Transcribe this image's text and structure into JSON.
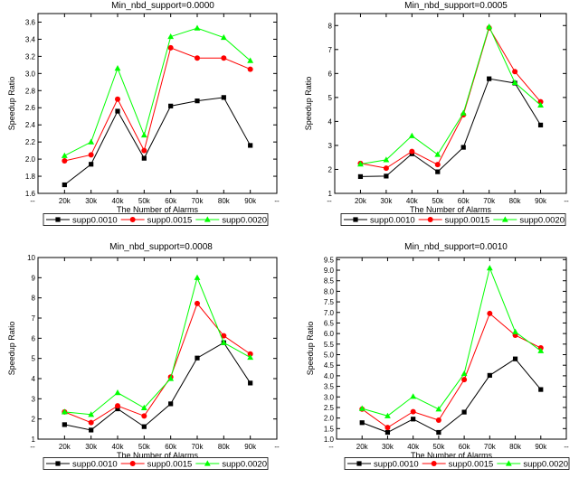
{
  "series_styles": [
    {
      "color": "#000000",
      "marker": "square"
    },
    {
      "color": "#ff0000",
      "marker": "circle"
    },
    {
      "color": "#00ff00",
      "marker": "triangle"
    }
  ],
  "chart_data": [
    {
      "type": "line",
      "title": "Min_nbd_support=0.0000",
      "xlabel": "The Number of Alarms",
      "ylabel": "Speedup Ratio",
      "categories": [
        "20k",
        "30k",
        "40k",
        "50k",
        "60k",
        "70k",
        "80k",
        "90k"
      ],
      "ylim": [
        1.6,
        3.7
      ],
      "yticks": [
        1.6,
        1.8,
        2.0,
        2.2,
        2.4,
        2.6,
        2.8,
        3.0,
        3.2,
        3.4,
        3.6
      ],
      "ytick_labels": [
        "1.6",
        "1.8",
        "2.0",
        "2.2",
        "2.4",
        "2.6",
        "2.8",
        "3.0",
        "3.2",
        "3.4",
        "3.6"
      ],
      "series": [
        {
          "name": "supp0.0010",
          "values": [
            1.7,
            1.94,
            2.56,
            2.01,
            2.62,
            2.68,
            2.72,
            2.16
          ]
        },
        {
          "name": "supp0.0015",
          "values": [
            1.98,
            2.05,
            2.7,
            2.1,
            3.3,
            3.18,
            3.18,
            3.05
          ]
        },
        {
          "name": "supp0.0020",
          "values": [
            2.04,
            2.2,
            3.06,
            2.28,
            3.43,
            3.53,
            3.42,
            3.15
          ]
        }
      ]
    },
    {
      "type": "line",
      "title": "Min_nbd_support=0.0005",
      "xlabel": "The Number of Alarms",
      "ylabel": "Speedup Ratio",
      "categories": [
        "20k",
        "30k",
        "40k",
        "50k",
        "60k",
        "70k",
        "80k",
        "90k"
      ],
      "ylim": [
        1,
        8.5
      ],
      "yticks": [
        1,
        2,
        3,
        4,
        5,
        6,
        7,
        8
      ],
      "ytick_labels": [
        "1",
        "2",
        "3",
        "4",
        "5",
        "6",
        "7",
        "8"
      ],
      "series": [
        {
          "name": "supp0.0010",
          "values": [
            1.7,
            1.72,
            2.65,
            1.9,
            2.92,
            5.78,
            5.6,
            3.85
          ]
        },
        {
          "name": "supp0.0015",
          "values": [
            2.25,
            2.05,
            2.75,
            2.2,
            4.28,
            7.9,
            6.08,
            4.82
          ]
        },
        {
          "name": "supp0.0020",
          "values": [
            2.22,
            2.4,
            3.4,
            2.62,
            4.35,
            7.95,
            5.62,
            4.68
          ]
        }
      ]
    },
    {
      "type": "line",
      "title": "Min_nbd_support=0.0008",
      "xlabel": "The Number of Alarms",
      "ylabel": "Speedup Ratio",
      "categories": [
        "20k",
        "30k",
        "40k",
        "50k",
        "60k",
        "70k",
        "80k",
        "90k"
      ],
      "ylim": [
        1,
        10
      ],
      "yticks": [
        1,
        2,
        3,
        4,
        5,
        6,
        7,
        8,
        9,
        10
      ],
      "ytick_labels": [
        "1",
        "2",
        "3",
        "4",
        "5",
        "6",
        "7",
        "8",
        "9",
        "10"
      ],
      "series": [
        {
          "name": "supp0.0010",
          "values": [
            1.72,
            1.45,
            2.5,
            1.62,
            2.75,
            5.02,
            5.78,
            3.78
          ]
        },
        {
          "name": "supp0.0015",
          "values": [
            2.35,
            1.82,
            2.65,
            2.15,
            4.08,
            7.72,
            6.12,
            5.22
          ]
        },
        {
          "name": "supp0.0020",
          "values": [
            2.35,
            2.22,
            3.3,
            2.55,
            4.0,
            9.0,
            5.78,
            5.05
          ]
        }
      ]
    },
    {
      "type": "line",
      "title": "Min_nbd_support=0.0010",
      "xlabel": "The Number of Alarms",
      "ylabel": "Speedup Ratio",
      "categories": [
        "20k",
        "30k",
        "40k",
        "50k",
        "60k",
        "70k",
        "80k",
        "90k"
      ],
      "ylim": [
        1.0,
        9.6
      ],
      "yticks": [
        1.0,
        1.5,
        2.0,
        2.5,
        3.0,
        3.5,
        4.0,
        4.5,
        5.0,
        5.5,
        6.0,
        6.5,
        7.0,
        7.5,
        8.0,
        8.5,
        9.0,
        9.5
      ],
      "ytick_labels": [
        "1.0",
        "1.5",
        "2.0",
        "2.5",
        "3.0",
        "3.5",
        "4.0",
        "4.5",
        "5.0",
        "5.5",
        "6.0",
        "6.5",
        "7.0",
        "7.5",
        "8.0",
        "8.5",
        "9.0",
        "9.5"
      ],
      "series": [
        {
          "name": "supp0.0010",
          "values": [
            1.78,
            1.32,
            1.95,
            1.32,
            2.28,
            4.02,
            4.8,
            3.35
          ]
        },
        {
          "name": "supp0.0015",
          "values": [
            2.42,
            1.55,
            2.3,
            1.9,
            3.82,
            6.95,
            5.92,
            5.32
          ]
        },
        {
          "name": "supp0.0020",
          "values": [
            2.45,
            2.1,
            3.02,
            2.42,
            4.1,
            9.1,
            6.08,
            5.18
          ]
        }
      ]
    }
  ]
}
